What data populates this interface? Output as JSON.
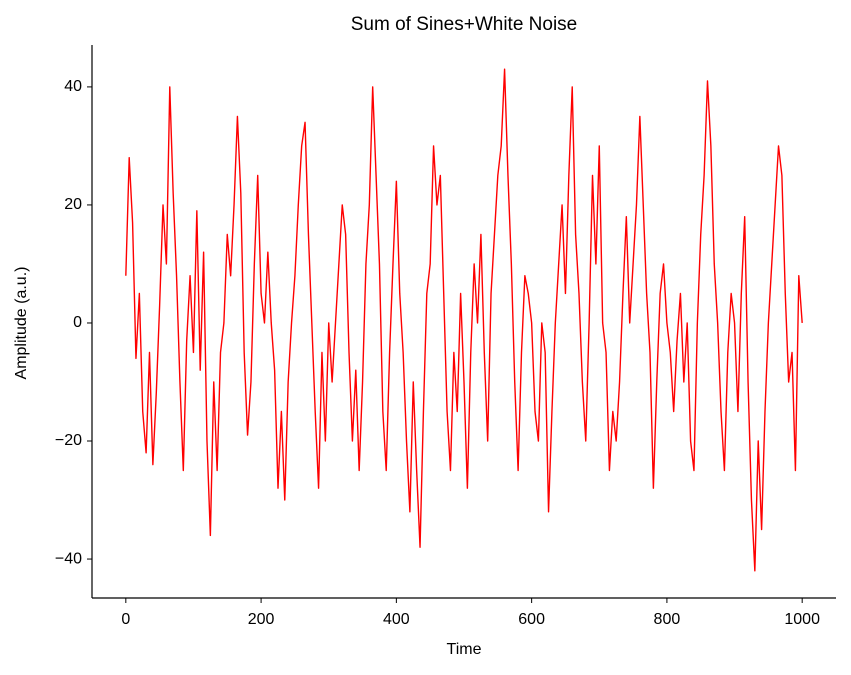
{
  "chart_data": {
    "type": "line",
    "title": "Sum of Sines+White Noise",
    "xlabel": "Time",
    "ylabel": "Amplitude (a.u.)",
    "color": "#ff0000",
    "xlim": [
      -50,
      1050
    ],
    "ylim": [
      -46.6,
      47.1
    ],
    "xticks": [
      0,
      200,
      400,
      600,
      800,
      1000
    ],
    "yticks": [
      {
        "value": -40,
        "label": "−40"
      },
      {
        "value": -20,
        "label": "−20"
      },
      0,
      20,
      40
    ],
    "x": [
      0,
      5,
      10,
      15,
      20,
      25,
      30,
      35,
      40,
      45,
      50,
      55,
      60,
      65,
      70,
      75,
      80,
      85,
      90,
      95,
      100,
      105,
      110,
      115,
      120,
      125,
      130,
      135,
      140,
      145,
      150,
      155,
      160,
      165,
      170,
      175,
      180,
      185,
      190,
      195,
      200,
      205,
      210,
      215,
      220,
      225,
      230,
      235,
      240,
      245,
      250,
      255,
      260,
      265,
      270,
      275,
      280,
      285,
      290,
      295,
      300,
      305,
      310,
      315,
      320,
      325,
      330,
      335,
      340,
      345,
      350,
      355,
      360,
      365,
      370,
      375,
      380,
      385,
      390,
      395,
      400,
      405,
      410,
      415,
      420,
      425,
      430,
      435,
      440,
      445,
      450,
      455,
      460,
      465,
      470,
      475,
      480,
      485,
      490,
      495,
      500,
      505,
      510,
      515,
      520,
      525,
      530,
      535,
      540,
      545,
      550,
      555,
      560,
      565,
      570,
      575,
      580,
      585,
      590,
      595,
      600,
      605,
      610,
      615,
      620,
      625,
      630,
      635,
      640,
      645,
      650,
      655,
      660,
      665,
      670,
      675,
      680,
      685,
      690,
      695,
      700,
      705,
      710,
      715,
      720,
      725,
      730,
      735,
      740,
      745,
      750,
      755,
      760,
      765,
      770,
      775,
      780,
      785,
      790,
      795,
      800,
      805,
      810,
      815,
      820,
      825,
      830,
      835,
      840,
      845,
      850,
      855,
      860,
      865,
      870,
      875,
      880,
      885,
      890,
      895,
      900,
      905,
      910,
      915,
      920,
      925,
      930,
      935,
      940,
      945,
      950,
      955,
      960,
      965,
      970,
      975,
      980,
      985,
      990,
      995,
      1000
    ],
    "values": [
      8,
      28,
      17,
      -6,
      5,
      -15,
      -22,
      -5,
      -24,
      -12,
      3,
      20,
      10,
      40,
      22,
      8,
      -10,
      -25,
      -3,
      8,
      -5,
      19,
      -8,
      12,
      -20,
      -36,
      -10,
      -25,
      -5,
      0,
      15,
      8,
      20,
      35,
      22,
      -5,
      -19,
      -10,
      10,
      25,
      5,
      0,
      12,
      0,
      -8,
      -28,
      -15,
      -30,
      -10,
      0,
      8,
      20,
      30,
      34,
      15,
      0,
      -15,
      -28,
      -5,
      -20,
      0,
      -10,
      0,
      10,
      20,
      15,
      -5,
      -20,
      -8,
      -25,
      -10,
      10,
      20,
      40,
      25,
      10,
      -15,
      -25,
      -5,
      10,
      24,
      5,
      -5,
      -20,
      -32,
      -10,
      -25,
      -38,
      -15,
      5,
      10,
      30,
      20,
      25,
      5,
      -15,
      -25,
      -5,
      -15,
      5,
      -10,
      -28,
      -5,
      10,
      0,
      15,
      -5,
      -20,
      5,
      15,
      25,
      30,
      43,
      25,
      10,
      -10,
      -25,
      -5,
      8,
      5,
      0,
      -15,
      -20,
      0,
      -5,
      -32,
      -15,
      0,
      10,
      20,
      5,
      25,
      40,
      15,
      5,
      -10,
      -20,
      0,
      25,
      10,
      30,
      0,
      -5,
      -25,
      -15,
      -20,
      -10,
      5,
      18,
      0,
      10,
      20,
      35,
      20,
      5,
      -5,
      -28,
      -10,
      5,
      10,
      0,
      -5,
      -15,
      -3,
      5,
      -10,
      0,
      -20,
      -25,
      0,
      15,
      25,
      41,
      30,
      10,
      0,
      -15,
      -25,
      -5,
      5,
      0,
      -15,
      5,
      18,
      -10,
      -30,
      -42,
      -20,
      -35,
      -15,
      0,
      10,
      20,
      30,
      25,
      5,
      -10,
      -5,
      -25,
      8,
      0
    ]
  }
}
